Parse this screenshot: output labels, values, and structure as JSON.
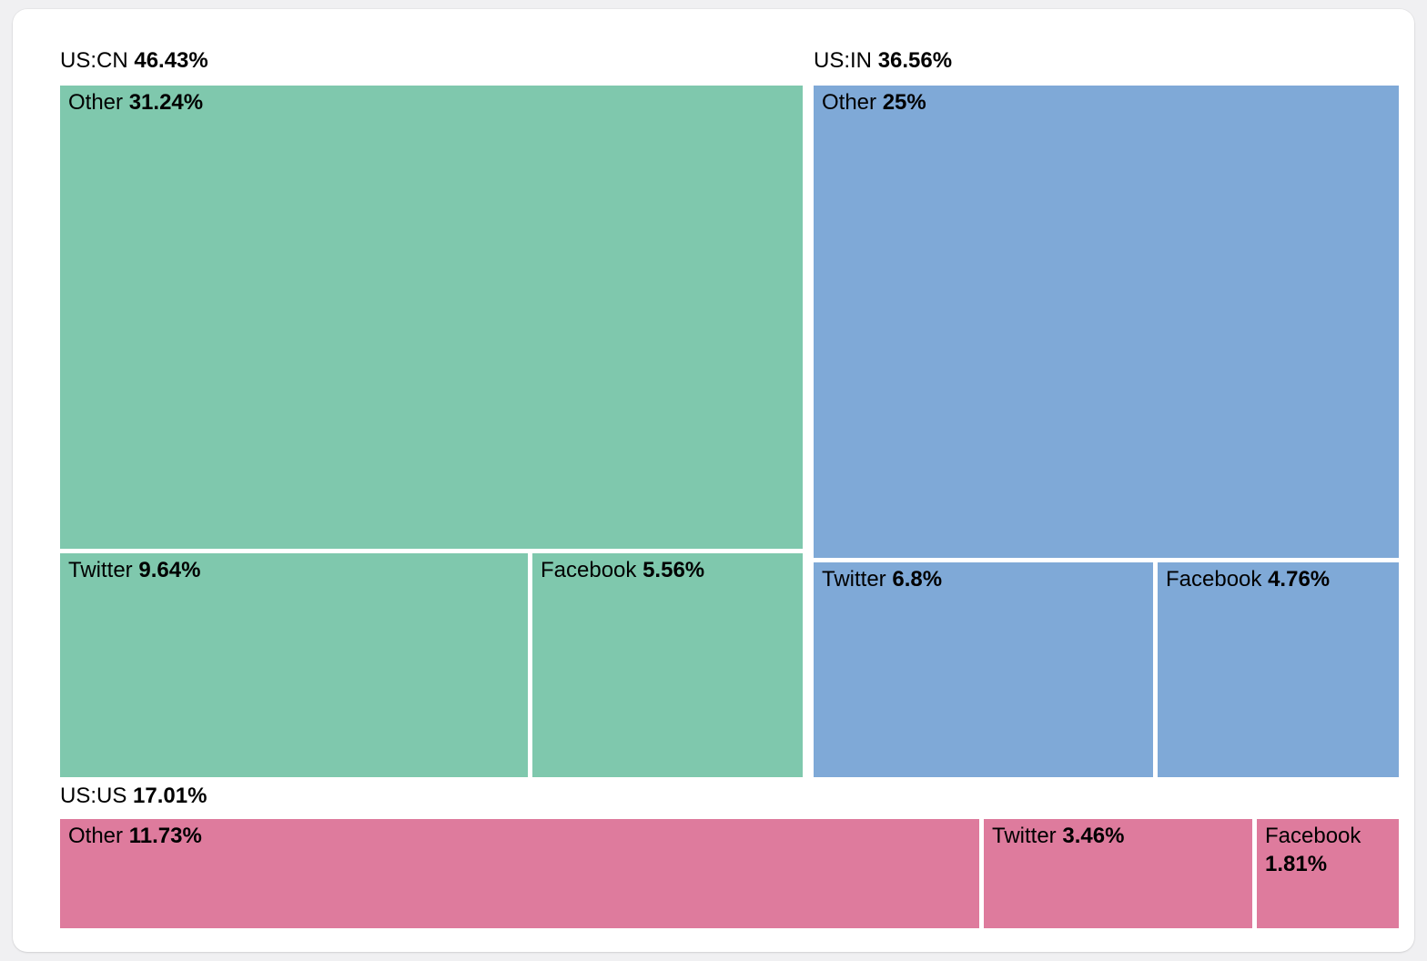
{
  "page": {
    "background_color": "#f0f0f2",
    "card_background_color": "#ffffff",
    "text_color": "#000000"
  },
  "chart_data": {
    "type": "treemap",
    "unit": "%",
    "legend_position": "none",
    "grid": false,
    "groups": [
      {
        "name": "US:CN",
        "value": 46.43,
        "value_label": "46.43%",
        "color": "#7fc8ad",
        "children": [
          {
            "name": "Other",
            "value": 31.24,
            "value_label": "31.24%"
          },
          {
            "name": "Twitter",
            "value": 9.64,
            "value_label": "9.64%"
          },
          {
            "name": "Facebook",
            "value": 5.56,
            "value_label": "5.56%"
          }
        ]
      },
      {
        "name": "US:IN",
        "value": 36.56,
        "value_label": "36.56%",
        "color": "#7fa9d7",
        "children": [
          {
            "name": "Other",
            "value": 25,
            "value_label": "25%"
          },
          {
            "name": "Twitter",
            "value": 6.8,
            "value_label": "6.8%"
          },
          {
            "name": "Facebook",
            "value": 4.76,
            "value_label": "4.76%"
          }
        ]
      },
      {
        "name": "US:US",
        "value": 17.01,
        "value_label": "17.01%",
        "color": "#de7b9d",
        "children": [
          {
            "name": "Other",
            "value": 11.73,
            "value_label": "11.73%"
          },
          {
            "name": "Twitter",
            "value": 3.46,
            "value_label": "3.46%"
          },
          {
            "name": "Facebook",
            "value": 1.81,
            "value_label": "1.81%"
          }
        ]
      }
    ]
  }
}
